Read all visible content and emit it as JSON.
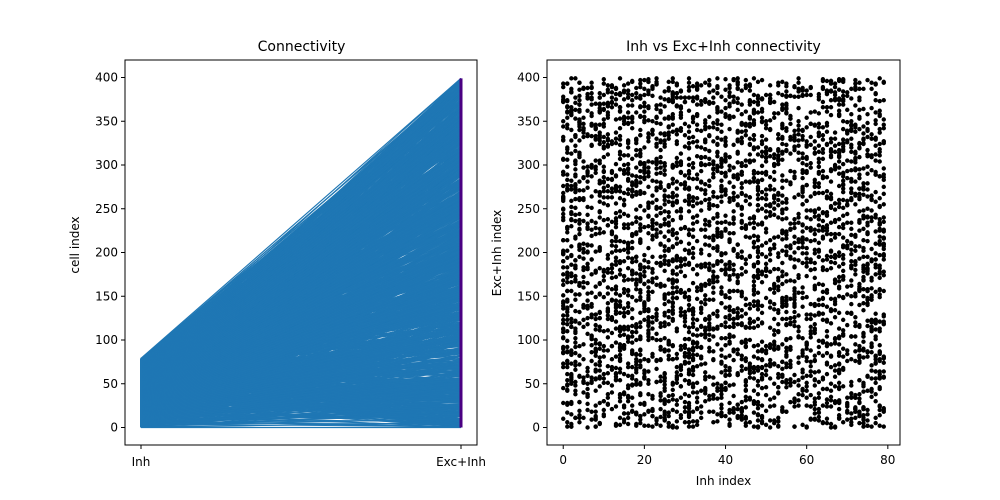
{
  "chart_data": [
    {
      "type": "line",
      "title": "Connectivity",
      "xlabel": "",
      "ylabel": "cell index",
      "categories": [
        "Inh",
        "Exc+Inh"
      ],
      "xlim": [
        -0.05,
        1.05
      ],
      "ylim": [
        -20,
        420
      ],
      "yticks": [
        0,
        50,
        100,
        150,
        200,
        250,
        300,
        350,
        400
      ],
      "description_of_marks": "Each line connects an Inh cell index (0-79) on the left to an Exc+Inh cell index (0-399) on the right",
      "left_range": [
        0,
        79
      ],
      "right_range": [
        0,
        399
      ],
      "line_color": "#1f77b4",
      "endpoint_marker_color": "#4b0082",
      "grid": false,
      "legend": "none"
    },
    {
      "type": "scatter",
      "title": "Inh vs Exc+Inh connectivity",
      "xlabel": "Inh index",
      "ylabel": "Exc+Inh index",
      "xlim": [
        -4,
        83
      ],
      "ylim": [
        -20,
        420
      ],
      "xticks": [
        0,
        20,
        40,
        60,
        80
      ],
      "yticks": [
        0,
        50,
        100,
        150,
        200,
        250,
        300,
        350,
        400
      ],
      "x_range": [
        0,
        79
      ],
      "y_range": [
        0,
        399
      ],
      "point_color": "#000000",
      "grid": false,
      "legend": "none"
    }
  ]
}
